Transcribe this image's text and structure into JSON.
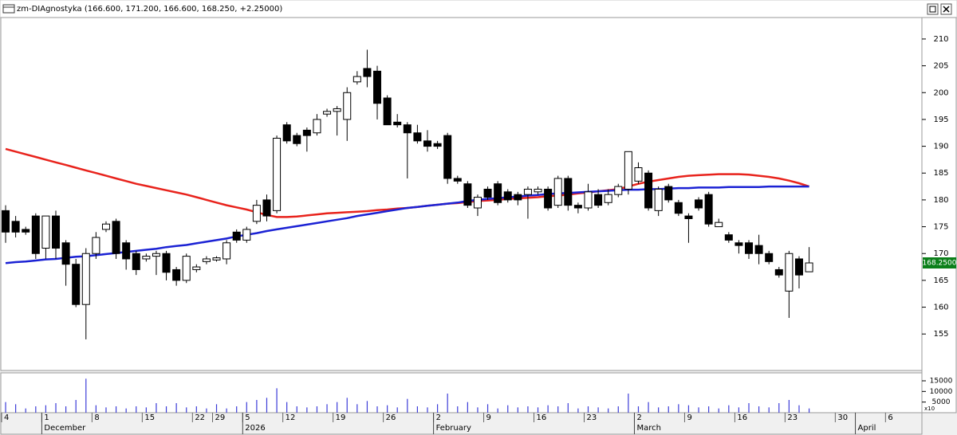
{
  "window": {
    "title": "zm-DIAgnostyka (166.600, 171.200, 166.600, 168.250, +2.25000)"
  },
  "chart_data": [
    {
      "type": "candlestick",
      "open": [
        178,
        176,
        174.5,
        177,
        171,
        177,
        172,
        168,
        160.5,
        170,
        174.5,
        176,
        172,
        170,
        169,
        169.5,
        170,
        167,
        165,
        167,
        168.5,
        168.8,
        169,
        174,
        172.5,
        176,
        180,
        178,
        194,
        192,
        193,
        192.5,
        196,
        196.5,
        195,
        202,
        204.5,
        204,
        199,
        194.5,
        194,
        192.5,
        191,
        190.5,
        192,
        184,
        183,
        178.5,
        182,
        183,
        181.5,
        181,
        181,
        181.5,
        182,
        179,
        184,
        179,
        178.5,
        181,
        179.5,
        181,
        182,
        183.5,
        185,
        178,
        182.5,
        179.5,
        177,
        180,
        181,
        175,
        173.5,
        172,
        172,
        171.5,
        170,
        167,
        163,
        169,
        166.6
      ],
      "high": [
        179,
        177,
        175,
        177.5,
        177,
        178,
        172.5,
        169,
        171,
        174,
        176,
        176.5,
        172.5,
        170.5,
        170,
        170.5,
        170.5,
        167.5,
        170,
        168,
        169.5,
        169.5,
        172.5,
        174.5,
        175,
        180,
        181,
        192,
        194.5,
        192.5,
        193.5,
        196,
        197,
        197.5,
        201,
        204,
        208,
        205,
        199.5,
        196,
        194.5,
        194,
        193,
        191,
        192.5,
        184.5,
        183.5,
        181,
        182.5,
        183.5,
        182,
        181.5,
        182.5,
        182.5,
        182.5,
        184.5,
        184.5,
        179.5,
        183,
        182,
        182,
        183,
        189,
        187,
        185.5,
        182.5,
        183,
        180,
        177.5,
        180.5,
        181.5,
        176.5,
        174,
        172.5,
        172.5,
        173.5,
        170.5,
        167.5,
        170.5,
        169.5,
        171.2
      ],
      "low": [
        172,
        173,
        173.5,
        169,
        169,
        169,
        164,
        160,
        154,
        169,
        174,
        169,
        167,
        166,
        168.5,
        166,
        165,
        164,
        164.5,
        166.5,
        168,
        168.5,
        168,
        172,
        172,
        175.5,
        176,
        177.5,
        190.5,
        190,
        189,
        192,
        195.5,
        192,
        191,
        201.5,
        201,
        195,
        194,
        193.5,
        184,
        190.5,
        189,
        189.5,
        183,
        183,
        178.5,
        177,
        180,
        179,
        179.5,
        179,
        176.5,
        181,
        178,
        178.5,
        178,
        177.5,
        178,
        178.5,
        179,
        180.5,
        181,
        183,
        178,
        177,
        179.5,
        177,
        172,
        178,
        175,
        175,
        172,
        170,
        169,
        168,
        168,
        165.5,
        158,
        163.5,
        166.6
      ],
      "close": [
        174,
        174,
        174,
        170,
        177,
        171,
        168,
        160.5,
        170,
        173,
        175.5,
        170,
        169,
        167,
        169.5,
        170,
        166.5,
        165,
        169.5,
        167.5,
        169,
        169.2,
        172,
        172.5,
        174.5,
        179,
        177,
        191.5,
        191,
        190.5,
        192,
        195,
        196.5,
        197,
        200,
        203,
        203,
        198,
        194,
        194,
        192.5,
        191,
        190,
        190,
        184,
        183.5,
        179,
        180.5,
        180.5,
        179.5,
        180,
        180,
        182,
        182,
        178.5,
        184,
        179,
        178.5,
        181.5,
        179,
        181,
        182.5,
        189,
        186,
        178.5,
        182,
        180,
        177.5,
        176.5,
        178.5,
        175.5,
        175.8,
        172.5,
        171.5,
        170,
        170,
        168.5,
        166,
        170,
        166,
        168.25
      ],
      "overlays": [
        {
          "color": "#e8231c",
          "values": [
            189.5,
            189,
            188.5,
            188,
            187.5,
            187,
            186.5,
            186,
            185.5,
            185,
            184.5,
            184,
            183.5,
            183,
            182.6,
            182.2,
            181.8,
            181.4,
            181,
            180.5,
            180,
            179.5,
            179,
            178.6,
            178.2,
            177.7,
            177.2,
            176.8,
            176.8,
            176.9,
            177.1,
            177.3,
            177.5,
            177.6,
            177.7,
            177.8,
            177.9,
            178.1,
            178.2,
            178.4,
            178.5,
            178.7,
            178.9,
            179.1,
            179.3,
            179.4,
            179.6,
            179.8,
            179.9,
            180,
            180.2,
            180.3,
            180.4,
            180.5,
            180.7,
            180.8,
            181,
            181.2,
            181.4,
            181.6,
            181.8,
            182,
            182.5,
            183,
            183.4,
            183.7,
            184,
            184.3,
            184.5,
            184.6,
            184.7,
            184.8,
            184.8,
            184.8,
            184.7,
            184.5,
            184.3,
            184,
            183.6,
            183.1,
            182.5
          ]
        },
        {
          "color": "#1b22d4",
          "values": [
            168.2,
            168.4,
            168.5,
            168.7,
            168.9,
            169,
            169.2,
            169.4,
            169.5,
            169.7,
            169.9,
            170.1,
            170.3,
            170.5,
            170.7,
            170.9,
            171.2,
            171.4,
            171.6,
            171.9,
            172.2,
            172.5,
            172.8,
            173.2,
            173.5,
            173.8,
            174.2,
            174.5,
            174.8,
            175.1,
            175.4,
            175.7,
            176,
            176.3,
            176.6,
            177,
            177.3,
            177.6,
            177.9,
            178.2,
            178.5,
            178.7,
            178.9,
            179.1,
            179.3,
            179.5,
            179.8,
            180,
            180.2,
            180.3,
            180.5,
            180.6,
            180.8,
            180.9,
            181.1,
            181.2,
            181.3,
            181.4,
            181.5,
            181.6,
            181.7,
            181.8,
            181.9,
            181.9,
            182,
            182,
            182.1,
            182.2,
            182.2,
            182.3,
            182.3,
            182.3,
            182.4,
            182.4,
            182.4,
            182.4,
            182.5,
            182.5,
            182.5,
            182.5,
            182.5
          ]
        }
      ],
      "last_label": {
        "value": 168.25,
        "label": "168.2500"
      },
      "ylim": [
        148.2,
        214
      ],
      "yticks": [
        155,
        160,
        165,
        170,
        175,
        180,
        185,
        190,
        195,
        200,
        205,
        210
      ],
      "xlim": [
        -0.4,
        91.15
      ],
      "xticks": [
        {
          "value": 0,
          "label": "4"
        },
        {
          "value": 4,
          "label": "1"
        },
        {
          "value": 9,
          "label": "8"
        },
        {
          "value": 14,
          "label": "15"
        },
        {
          "value": 19,
          "label": "22"
        },
        {
          "value": 21,
          "label": "29"
        },
        {
          "value": 24,
          "label": "5"
        },
        {
          "value": 28,
          "label": "12"
        },
        {
          "value": 33,
          "label": "19"
        },
        {
          "value": 38,
          "label": "26"
        },
        {
          "value": 43,
          "label": "2"
        },
        {
          "value": 48,
          "label": "9"
        },
        {
          "value": 53,
          "label": "16"
        },
        {
          "value": 58,
          "label": "23"
        },
        {
          "value": 63,
          "label": "2"
        },
        {
          "value": 68,
          "label": "9"
        },
        {
          "value": 73,
          "label": "16"
        },
        {
          "value": 78,
          "label": "23"
        },
        {
          "value": 83,
          "label": "30"
        },
        {
          "value": 88,
          "label": "6"
        }
      ],
      "month_labels": [
        {
          "value": 4,
          "label": "December"
        },
        {
          "value": 24,
          "label": "2026"
        },
        {
          "value": 43,
          "label": "February"
        },
        {
          "value": 63,
          "label": "March"
        },
        {
          "value": 85,
          "label": "April"
        }
      ]
    },
    {
      "type": "bar",
      "color": "#3c3cd8",
      "values": [
        5000,
        4000,
        2000,
        3000,
        3500,
        4500,
        3000,
        6000,
        16000,
        3500,
        2500,
        3000,
        2000,
        3000,
        2500,
        4500,
        3000,
        4500,
        2500,
        3000,
        2000,
        4000,
        2000,
        3000,
        5000,
        6000,
        7000,
        11500,
        5000,
        3000,
        2500,
        3000,
        4000,
        5000,
        7000,
        4000,
        5500,
        3000,
        3500,
        2500,
        6500,
        3000,
        2500,
        4000,
        9000,
        3000,
        5000,
        2500,
        4000,
        2000,
        3500,
        2500,
        3000,
        2500,
        3500,
        3000,
        4500,
        2000,
        3000,
        2500,
        2000,
        3000,
        9000,
        3000,
        5000,
        2500,
        3000,
        4000,
        3500,
        2500,
        3000,
        2000,
        3500,
        2500,
        4500,
        3000,
        2500,
        4500,
        6000,
        3500,
        2000
      ],
      "ylim": [
        0,
        18750
      ],
      "yticks": [
        5000,
        10000,
        15000
      ],
      "scale_label": "x10"
    }
  ]
}
